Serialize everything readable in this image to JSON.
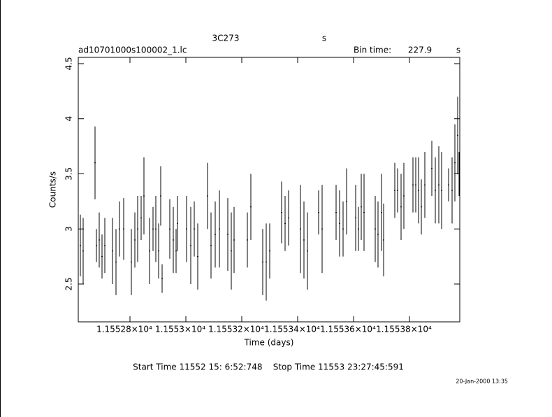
{
  "chart_data": {
    "type": "errorbar",
    "header": {
      "object": "3C273",
      "object_unit": "s",
      "file": "ad10701000s100002_1.lc",
      "bin_label": "Bin time:",
      "bin_value": 227.9,
      "bin_unit": "s"
    },
    "xlabel": "Time (days)",
    "ylabel": "Counts/s",
    "footer": "Start Time 11552 15: 6:52:748    Stop Time 11553 23:27:45:591",
    "date": "20-Jan-2000 13:35",
    "color": "#000000",
    "xlim": [
      11552.615,
      11553.98
    ],
    "xticks": [
      {
        "value": 11552.8,
        "label": "1.15528×10⁴"
      },
      {
        "value": 11553.0,
        "label": "1.1553×10⁴"
      },
      {
        "value": 11553.2,
        "label": "1.15532×10⁴"
      },
      {
        "value": 11553.4,
        "label": "1.15534×10⁴"
      },
      {
        "value": 11553.6,
        "label": "1.15536×10⁴"
      },
      {
        "value": 11553.8,
        "label": "1.15538×10⁴"
      }
    ],
    "ylim": [
      2.157,
      4.557
    ],
    "yticks": [
      2.5,
      3,
      3.5,
      4,
      4.5
    ],
    "x": [
      11552.6225,
      11552.6325,
      11552.675,
      11552.68,
      11552.69,
      11552.7,
      11552.71,
      11552.7375,
      11552.75,
      11552.7625,
      11552.7775,
      11552.805,
      11552.8175,
      11552.8275,
      11552.84,
      11552.85,
      11552.87,
      11552.8825,
      11552.8925,
      11552.9025,
      11552.91,
      11552.915,
      11552.9425,
      11552.955,
      11552.965,
      11552.97,
      11553.0025,
      11553.0175,
      11553.03,
      11553.0425,
      11553.0775,
      11553.09,
      11553.105,
      11553.12,
      11553.15,
      11553.1625,
      11553.1725,
      11553.22,
      11553.2325,
      11553.275,
      11553.2875,
      11553.3,
      11553.3425,
      11553.355,
      11553.3675,
      11553.41,
      11553.4225,
      11553.435,
      11553.475,
      11553.4875,
      11553.5375,
      11553.55,
      11553.5625,
      11553.575,
      11553.6075,
      11553.6175,
      11553.6275,
      11553.6375,
      11553.6775,
      11553.6875,
      11553.7,
      11553.7075,
      11553.7475,
      11553.7575,
      11553.77,
      11553.78,
      11553.8125,
      11553.8225,
      11553.8325,
      11553.8425,
      11553.855,
      11553.88,
      11553.8925,
      11553.905,
      11553.915,
      11553.94,
      11553.9525,
      11553.9625,
      11553.9725,
      11553.9775
    ],
    "values": [
      2.85,
      2.8,
      3.6,
      2.85,
      2.9,
      2.75,
      2.85,
      2.8,
      2.7,
      3.0,
      3.0,
      2.7,
      2.9,
      3.0,
      3.1,
      3.3,
      2.8,
      3.0,
      3.0,
      2.8,
      3.3,
      2.55,
      3.0,
      2.9,
      2.8,
      3.05,
      3.0,
      2.85,
      3.0,
      2.75,
      3.3,
      2.85,
      2.95,
      3.0,
      2.95,
      2.8,
      2.9,
      2.9,
      3.2,
      2.7,
      2.7,
      2.8,
      3.15,
      3.05,
      3.1,
      3.0,
      2.9,
      2.8,
      3.15,
      3.0,
      3.15,
      3.05,
      3.0,
      3.25,
      3.1,
      3.0,
      3.2,
      3.15,
      3.0,
      2.95,
      3.15,
      2.9,
      3.35,
      3.35,
      3.2,
      3.3,
      3.4,
      3.4,
      3.35,
      3.2,
      3.4,
      3.55,
      3.35,
      3.4,
      3.35,
      3.4,
      3.35,
      3.6,
      3.85,
      3.5
    ],
    "errors": [
      0.28,
      0.3,
      0.33,
      0.15,
      0.25,
      0.2,
      0.25,
      0.3,
      0.3,
      0.25,
      0.28,
      0.3,
      0.25,
      0.3,
      0.2,
      0.35,
      0.3,
      0.2,
      0.3,
      0.25,
      0.27,
      0.13,
      0.27,
      0.3,
      0.2,
      0.25,
      0.3,
      0.35,
      0.25,
      0.3,
      0.3,
      0.3,
      0.3,
      0.35,
      0.33,
      0.35,
      0.3,
      0.25,
      0.3,
      0.3,
      0.35,
      0.25,
      0.28,
      0.25,
      0.25,
      0.4,
      0.35,
      0.35,
      0.2,
      0.4,
      0.25,
      0.3,
      0.25,
      0.3,
      0.3,
      0.2,
      0.3,
      0.35,
      0.3,
      0.3,
      0.35,
      0.33,
      0.25,
      0.2,
      0.3,
      0.3,
      0.25,
      0.25,
      0.3,
      0.25,
      0.3,
      0.25,
      0.3,
      0.35,
      0.35,
      0.15,
      0.3,
      0.35,
      0.35,
      0.2
    ]
  }
}
